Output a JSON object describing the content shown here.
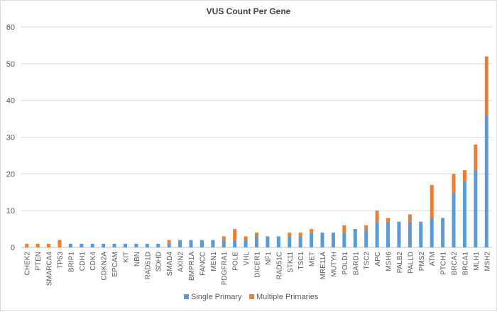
{
  "chart_data": {
    "type": "bar",
    "stacked": true,
    "title": "VUS Count Per Gene",
    "xlabel": "",
    "ylabel": "",
    "ylim": [
      0,
      60
    ],
    "yticks": [
      0,
      10,
      20,
      30,
      40,
      50,
      60
    ],
    "grid": true,
    "legend_position": "bottom",
    "categories": [
      "CHEK2",
      "PTEN",
      "SMARCA4",
      "TP53",
      "BRIP1",
      "CDH1",
      "CDK4",
      "CDKN2A",
      "EPCAM",
      "KIT",
      "NBN",
      "RAD51D",
      "SDHD",
      "SMAD4",
      "AXIN2",
      "BMPR1A",
      "FANCC",
      "MEN1",
      "PDGFRA1",
      "POLE",
      "VHL",
      "DICER1",
      "NF1",
      "RAD51C",
      "STK11",
      "TSC1",
      "MET",
      "MRE11A",
      "MUTYH",
      "POLD1",
      "BARD1",
      "TSC2",
      "APC",
      "MSH6",
      "PALB2",
      "PALLD",
      "PMS2",
      "ATM",
      "PTCH1",
      "BRCA2",
      "BRCA1",
      "MLH1",
      "MSH2"
    ],
    "series": [
      {
        "name": "Single Primary",
        "color": "#5B9BD5",
        "values": [
          0,
          0,
          0,
          0,
          1,
          1,
          1,
          1,
          1,
          1,
          1,
          1,
          1,
          1,
          2,
          2,
          2,
          2,
          2,
          2,
          2,
          3,
          3,
          3,
          3,
          3,
          4,
          4,
          4,
          4,
          5,
          5,
          7,
          7,
          7,
          7,
          7,
          8,
          8,
          15,
          18,
          21,
          36
        ]
      },
      {
        "name": "Multiple Primaries",
        "color": "#ED7D31",
        "values": [
          1,
          1,
          1,
          2,
          0,
          0,
          0,
          0,
          0,
          0,
          0,
          0,
          0,
          1,
          0,
          0,
          0,
          0,
          1,
          3,
          1,
          1,
          0,
          0,
          1,
          1,
          1,
          0,
          0,
          2,
          0,
          1,
          3,
          1,
          0,
          2,
          0,
          9,
          0,
          5,
          3,
          7,
          16
        ]
      }
    ]
  }
}
